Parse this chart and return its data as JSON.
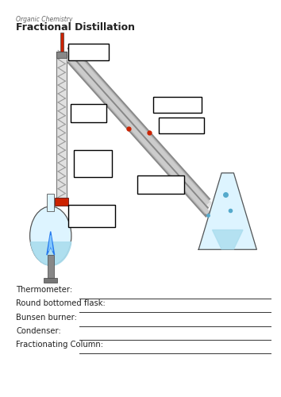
{
  "title": "Fractional Distillation",
  "subtitle": "Organic Chemistry",
  "fill_in_labels": [
    "Thermometer:",
    "Round bottomed flask:",
    "Bunsen burner:",
    "Condenser:",
    "Fractionating Column:"
  ],
  "bg_color": "#ffffff",
  "box_color": "#000000",
  "text_color": "#4a4a4a",
  "title_color": "#222222"
}
